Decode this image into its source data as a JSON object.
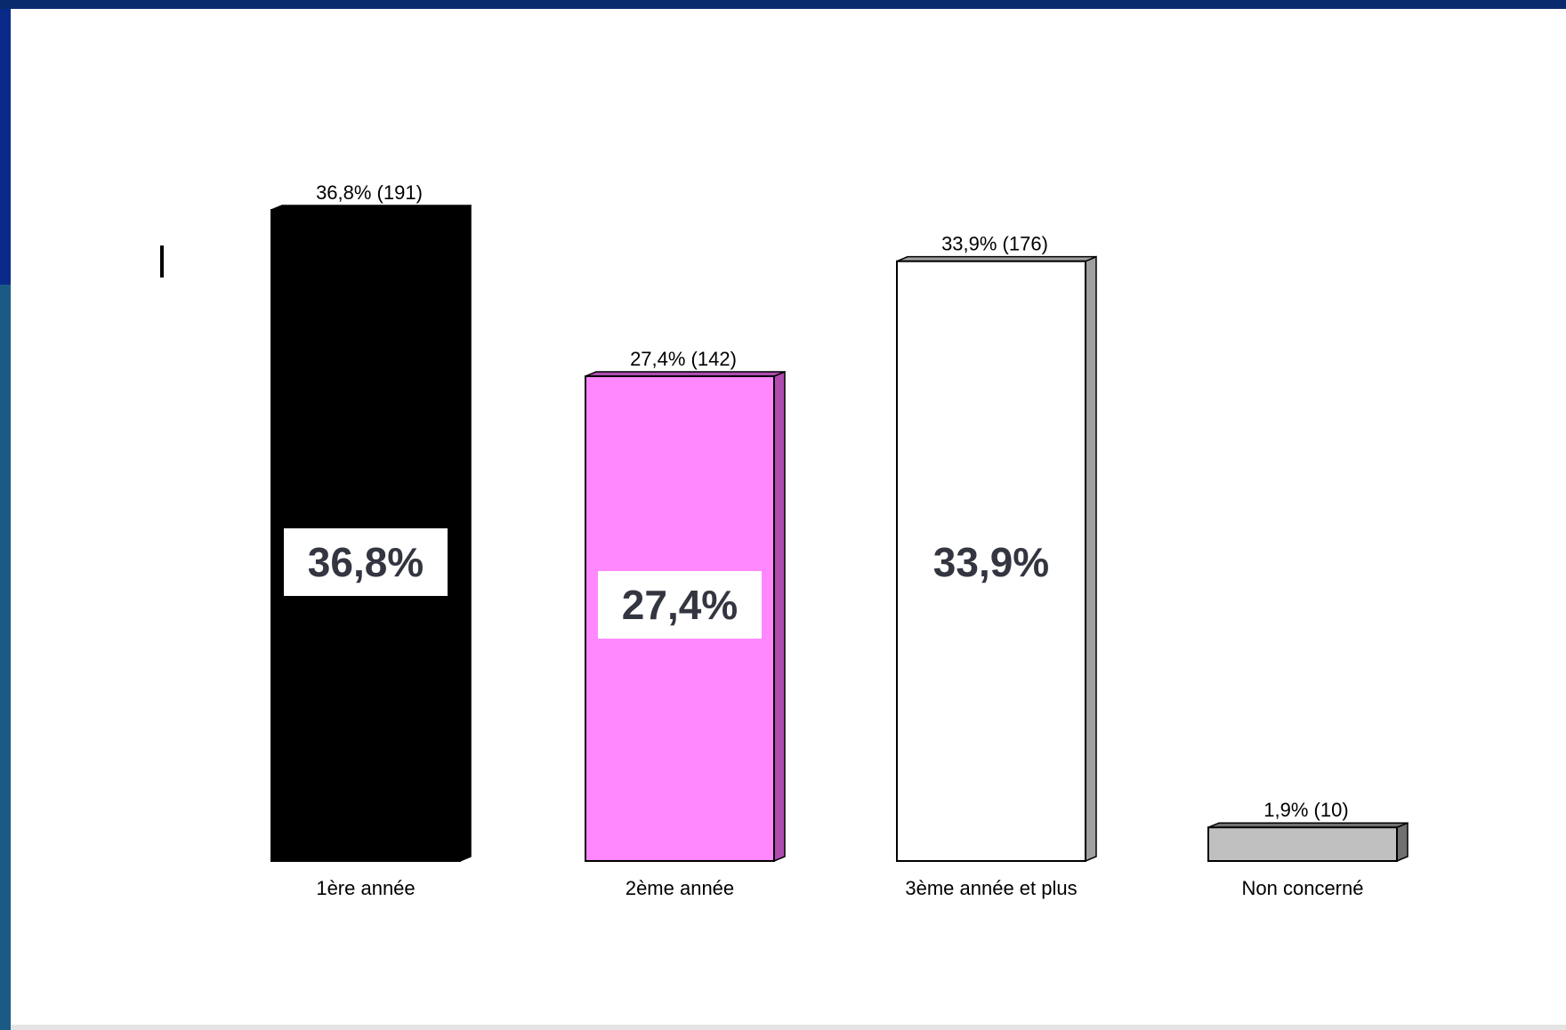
{
  "chart_data": {
    "type": "bar",
    "categories": [
      "1ère année",
      "2ème année",
      "3ème année et plus",
      "Non concerné"
    ],
    "values": [
      36.8,
      27.4,
      33.9,
      1.9
    ],
    "top_labels": [
      "36,8% (191)",
      "27,4% (142)",
      "33,9% (176)",
      "1,9% (10)"
    ],
    "inner_labels": [
      "36,8%",
      "27,4%",
      "33,9%",
      ""
    ],
    "colors": [
      "#000000",
      "#ff88ff",
      "#ffffff",
      "#c0c0c0"
    ],
    "side_colors": [
      "#000000",
      "#b04cb0",
      "#a0a0a0",
      "#707070"
    ],
    "ylim": [
      0,
      36.8
    ],
    "grid": false
  }
}
